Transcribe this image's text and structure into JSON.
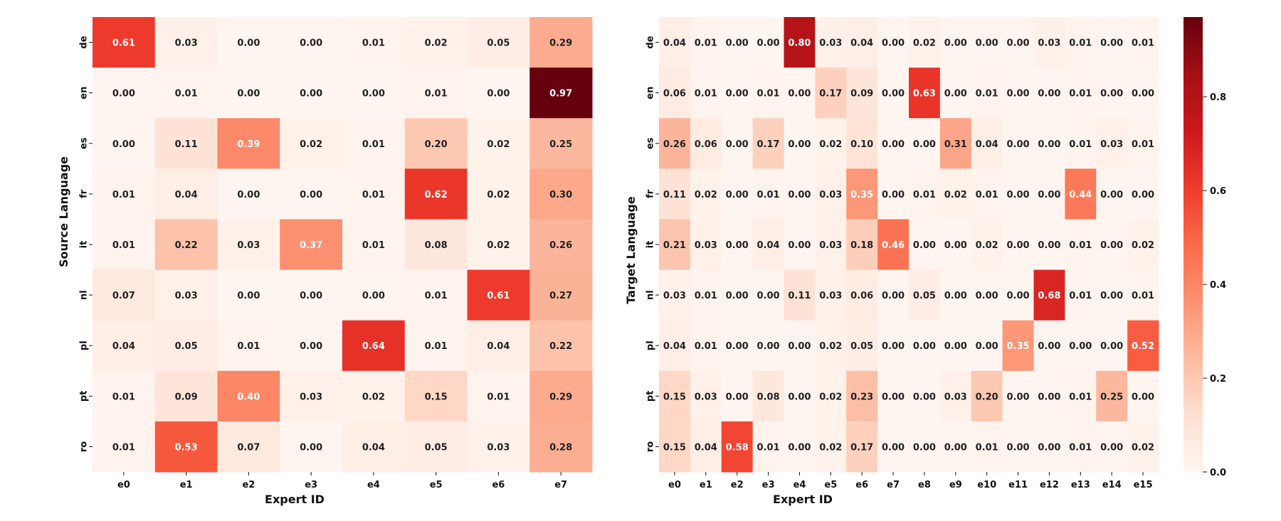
{
  "chart_data": [
    {
      "type": "heatmap",
      "xlabel": "Expert ID",
      "ylabel": "Source Language",
      "x_categories": [
        "e0",
        "e1",
        "e2",
        "e3",
        "e4",
        "e5",
        "e6",
        "e7"
      ],
      "y_categories": [
        "de",
        "en",
        "es",
        "fr",
        "it",
        "nl",
        "pl",
        "pt",
        "ro"
      ],
      "values": [
        [
          0.61,
          0.03,
          0.0,
          0.0,
          0.01,
          0.02,
          0.05,
          0.29
        ],
        [
          0.0,
          0.01,
          0.0,
          0.0,
          0.0,
          0.01,
          0.0,
          0.97
        ],
        [
          0.0,
          0.11,
          0.39,
          0.02,
          0.01,
          0.2,
          0.02,
          0.25
        ],
        [
          0.01,
          0.04,
          0.0,
          0.0,
          0.01,
          0.62,
          0.02,
          0.3
        ],
        [
          0.01,
          0.22,
          0.03,
          0.37,
          0.01,
          0.08,
          0.02,
          0.26
        ],
        [
          0.07,
          0.03,
          0.0,
          0.0,
          0.0,
          0.01,
          0.61,
          0.27
        ],
        [
          0.04,
          0.05,
          0.01,
          0.0,
          0.64,
          0.01,
          0.04,
          0.22
        ],
        [
          0.01,
          0.09,
          0.4,
          0.03,
          0.02,
          0.15,
          0.01,
          0.29
        ],
        [
          0.01,
          0.53,
          0.07,
          0.0,
          0.04,
          0.05,
          0.03,
          0.28
        ]
      ],
      "colormap": "Reds",
      "vmin": 0.0,
      "vmax": 0.97
    },
    {
      "type": "heatmap",
      "xlabel": "Expert ID",
      "ylabel": "Target Language",
      "x_categories": [
        "e0",
        "e1",
        "e2",
        "e3",
        "e4",
        "e5",
        "e6",
        "e7",
        "e8",
        "e9",
        "e10",
        "e11",
        "e12",
        "e13",
        "e14",
        "e15"
      ],
      "y_categories": [
        "de",
        "en",
        "es",
        "fr",
        "it",
        "nl",
        "pl",
        "pt",
        "ro"
      ],
      "values": [
        [
          0.04,
          0.01,
          0.0,
          0.0,
          0.8,
          0.03,
          0.04,
          0.0,
          0.02,
          0.0,
          0.0,
          0.0,
          0.03,
          0.01,
          0.0,
          0.01
        ],
        [
          0.06,
          0.01,
          0.0,
          0.01,
          0.0,
          0.17,
          0.09,
          0.0,
          0.63,
          0.0,
          0.01,
          0.0,
          0.0,
          0.01,
          0.0,
          0.0
        ],
        [
          0.26,
          0.06,
          0.0,
          0.17,
          0.0,
          0.02,
          0.1,
          0.0,
          0.0,
          0.31,
          0.04,
          0.0,
          0.0,
          0.01,
          0.03,
          0.01
        ],
        [
          0.11,
          0.02,
          0.0,
          0.01,
          0.0,
          0.03,
          0.35,
          0.0,
          0.01,
          0.02,
          0.01,
          0.0,
          0.0,
          0.44,
          0.0,
          0.0
        ],
        [
          0.21,
          0.03,
          0.0,
          0.04,
          0.0,
          0.03,
          0.18,
          0.46,
          0.0,
          0.0,
          0.02,
          0.0,
          0.0,
          0.01,
          0.0,
          0.02
        ],
        [
          0.03,
          0.01,
          0.0,
          0.0,
          0.11,
          0.03,
          0.06,
          0.0,
          0.05,
          0.0,
          0.0,
          0.0,
          0.68,
          0.01,
          0.0,
          0.01
        ],
        [
          0.04,
          0.01,
          0.0,
          0.0,
          0.0,
          0.02,
          0.05,
          0.0,
          0.0,
          0.0,
          0.0,
          0.35,
          0.0,
          0.0,
          0.0,
          0.52
        ],
        [
          0.15,
          0.03,
          0.0,
          0.08,
          0.0,
          0.02,
          0.23,
          0.0,
          0.0,
          0.03,
          0.2,
          0.0,
          0.0,
          0.01,
          0.25,
          0.0
        ],
        [
          0.15,
          0.04,
          0.58,
          0.01,
          0.0,
          0.02,
          0.17,
          0.0,
          0.0,
          0.0,
          0.01,
          0.0,
          0.0,
          0.01,
          0.0,
          0.02
        ]
      ],
      "colormap": "Reds",
      "vmin": 0.0,
      "vmax": 0.97
    }
  ],
  "colorbar": {
    "min": 0.0,
    "max": 0.97,
    "ticks": [
      0.0,
      0.2,
      0.4,
      0.6,
      0.8
    ],
    "tick_labels": [
      "0.0",
      "0.2",
      "0.4",
      "0.6",
      "0.8"
    ]
  }
}
